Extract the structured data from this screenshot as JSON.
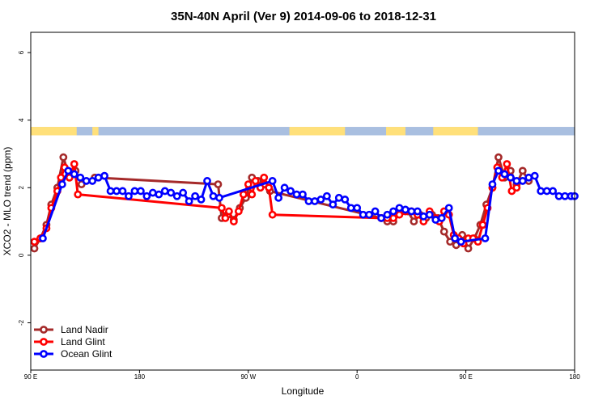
{
  "chart_data": {
    "type": "line",
    "title": "35N-40N April (Ver 9)   2014-09-06 to 2018-12-31",
    "xlabel": "Longitude",
    "ylabel": "XCO2 - MLO trend (ppm)",
    "xlim": [
      90,
      540
    ],
    "ylim": [
      -3.4,
      6.6
    ],
    "x_ticks": [
      {
        "value": 90,
        "label": "90 E"
      },
      {
        "value": 180,
        "label": "180"
      },
      {
        "value": 270,
        "label": "90 W"
      },
      {
        "value": 360,
        "label": "0"
      },
      {
        "value": 450,
        "label": "90 E"
      },
      {
        "value": 540,
        "label": "180"
      }
    ],
    "y_ticks": [
      {
        "value": -2,
        "label": "-2"
      },
      {
        "value": 0,
        "label": "0"
      },
      {
        "value": 2,
        "label": "2"
      },
      {
        "value": 4,
        "label": "4"
      },
      {
        "value": 6,
        "label": "6"
      }
    ],
    "legend_position": "bottom-left",
    "land_ocean_strip": {
      "y_range": [
        3.55,
        3.8
      ],
      "land_color": "#ffe07a",
      "ocean_color": "#a9bfe0",
      "land_segments": [
        [
          90,
          128
        ],
        [
          141,
          146
        ],
        [
          304,
          350
        ],
        [
          384,
          400
        ],
        [
          423,
          460
        ]
      ]
    },
    "series": [
      {
        "name": "Land Nadir",
        "color": "#a52a2a",
        "x": [
          93,
          98,
          103,
          107,
          112,
          117,
          122,
          127,
          132,
          143,
          245,
          248,
          253,
          258,
          263,
          268,
          273,
          278,
          283,
          288,
          380,
          385,
          390,
          397,
          402,
          407,
          412,
          417,
          422,
          427,
          432,
          437,
          442,
          447,
          452,
          457,
          462,
          467,
          472,
          477,
          482,
          487,
          492,
          497,
          502
        ],
        "y": [
          0.2,
          0.5,
          0.9,
          1.5,
          2.0,
          2.9,
          2.3,
          2.5,
          2.1,
          2.3,
          2.1,
          1.1,
          1.2,
          1.05,
          1.4,
          1.7,
          2.3,
          2.2,
          2.1,
          1.9,
          1.1,
          1.0,
          1.0,
          1.3,
          1.3,
          1.0,
          1.2,
          1.1,
          1.2,
          1.1,
          0.7,
          0.4,
          0.3,
          0.6,
          0.2,
          0.5,
          0.9,
          1.5,
          2.0,
          2.9,
          2.3,
          2.5,
          2.1,
          2.5,
          2.2
        ]
      },
      {
        "name": "Land Glint",
        "color": "#ff0000",
        "x": [
          93,
          98,
          103,
          107,
          112,
          115,
          118,
          122,
          126,
          129,
          248,
          251,
          254,
          258,
          262,
          266,
          270,
          273,
          276,
          280,
          283,
          287,
          290,
          380,
          385,
          390,
          395,
          400,
          405,
          410,
          415,
          420,
          425,
          428,
          432,
          436,
          440,
          444,
          448,
          452,
          456,
          460,
          464,
          468,
          472,
          476,
          480,
          484,
          488,
          492
        ],
        "y": [
          0.4,
          0.5,
          0.8,
          1.4,
          1.9,
          2.3,
          2.6,
          2.3,
          2.7,
          1.8,
          1.4,
          1.1,
          1.3,
          1.0,
          1.3,
          1.8,
          2.1,
          1.8,
          2.2,
          2.0,
          2.3,
          2.0,
          1.2,
          1.1,
          1.1,
          1.1,
          1.2,
          1.3,
          1.3,
          1.2,
          1.0,
          1.3,
          1.1,
          1.0,
          1.3,
          1.2,
          0.6,
          0.5,
          0.35,
          0.5,
          0.5,
          0.4,
          0.9,
          1.4,
          2.0,
          2.6,
          2.3,
          2.7,
          1.9,
          2.0
        ]
      },
      {
        "name": "Ocean Glint",
        "color": "#0000ff",
        "x": [
          100,
          116,
          121,
          126,
          131,
          136,
          141,
          146,
          151,
          156,
          161,
          166,
          171,
          176,
          181,
          186,
          191,
          196,
          201,
          206,
          211,
          216,
          221,
          226,
          231,
          236,
          241,
          246,
          290,
          295,
          300,
          305,
          310,
          315,
          320,
          325,
          330,
          335,
          340,
          345,
          350,
          355,
          360,
          365,
          370,
          375,
          380,
          385,
          390,
          395,
          400,
          405,
          410,
          415,
          420,
          425,
          430,
          436,
          441,
          446,
          466,
          472,
          477,
          482,
          487,
          492,
          497,
          502,
          507,
          512,
          517,
          522,
          527,
          532,
          537,
          540
        ],
        "y": [
          0.5,
          2.1,
          2.5,
          2.4,
          2.3,
          2.2,
          2.2,
          2.3,
          2.35,
          1.9,
          1.9,
          1.9,
          1.75,
          1.9,
          1.9,
          1.75,
          1.85,
          1.8,
          1.9,
          1.85,
          1.75,
          1.85,
          1.6,
          1.75,
          1.65,
          2.2,
          1.75,
          1.7,
          2.2,
          1.7,
          2.0,
          1.9,
          1.8,
          1.8,
          1.6,
          1.6,
          1.65,
          1.75,
          1.5,
          1.7,
          1.65,
          1.4,
          1.4,
          1.2,
          1.2,
          1.3,
          1.1,
          1.2,
          1.3,
          1.4,
          1.35,
          1.3,
          1.3,
          1.15,
          1.2,
          1.05,
          1.1,
          1.4,
          0.5,
          0.4,
          0.5,
          2.1,
          2.5,
          2.4,
          2.3,
          2.2,
          2.2,
          2.3,
          2.35,
          1.9,
          1.9,
          1.9,
          1.75,
          1.75,
          1.75,
          1.75
        ]
      }
    ]
  }
}
